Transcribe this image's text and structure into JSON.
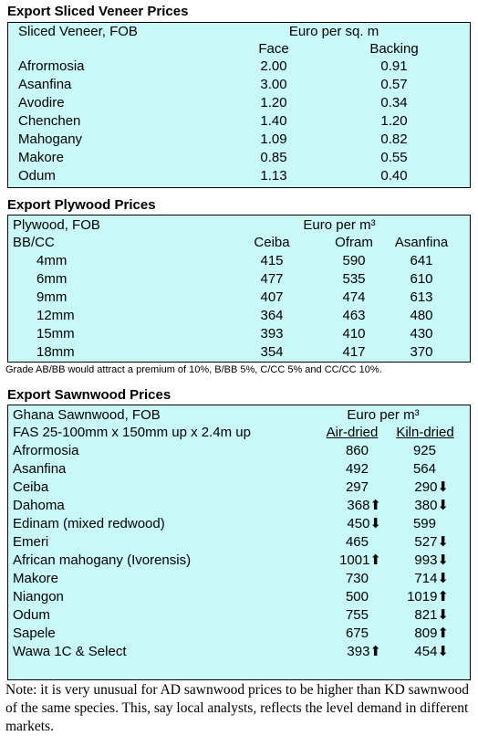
{
  "veneer": {
    "title": "Export Sliced Veneer Prices",
    "header": "Sliced Veneer, FOB",
    "unit": "Euro per sq. m",
    "columns": [
      "Face",
      "Backing"
    ],
    "rows": [
      [
        "Afrormosia",
        "2.00",
        "0.91"
      ],
      [
        "Asanfina",
        "3.00",
        "0.57"
      ],
      [
        "Avodire",
        "1.20",
        "0.34"
      ],
      [
        "Chenchen",
        "1.40",
        "1.20"
      ],
      [
        "Mahogany",
        "1.09",
        "0.82"
      ],
      [
        "Makore",
        "0.85",
        "0.55"
      ],
      [
        "Odum",
        "1.13",
        "0.40"
      ]
    ]
  },
  "plywood": {
    "title": "Export Plywood Prices",
    "header": "Plywood, FOB",
    "unit": "Euro per m³",
    "grade": "BB/CC",
    "columns": [
      "Ceiba",
      "Ofram",
      "Asanfina"
    ],
    "rows": [
      [
        "4mm",
        "415",
        "590",
        "641"
      ],
      [
        "6mm",
        "477",
        "535",
        "610"
      ],
      [
        "9mm",
        "407",
        "474",
        "613"
      ],
      [
        "12mm",
        "364",
        "463",
        "480"
      ],
      [
        "15mm",
        "393",
        "410",
        "430"
      ],
      [
        "18mm",
        "354",
        "417",
        "370"
      ]
    ],
    "note": "Grade AB/BB would attract a premium of 10%, B/BB 5%, C/CC 5% and CC/CC 10%."
  },
  "sawnwood": {
    "title": "Export Sawnwood Prices",
    "header": "Ghana Sawnwood, FOB",
    "unit": "Euro per m³",
    "spec": "FAS 25-100mm x 150mm up x 2.4m up",
    "columns": [
      "Air-dried",
      "Kiln-dried"
    ],
    "rows": [
      [
        "Afrormosia",
        "860",
        "925"
      ],
      [
        "Asanfina",
        "492",
        "564"
      ],
      [
        "Ceiba",
        "297",
        "290⬇"
      ],
      [
        "Dahoma",
        "368⬆",
        "380⬇"
      ],
      [
        "Edinam (mixed redwood)",
        "450⬇",
        "599"
      ],
      [
        "Emeri",
        "465",
        "527⬇"
      ],
      [
        "African mahogany (Ivorensis)",
        "1001⬆",
        "993⬇"
      ],
      [
        "Makore",
        "730",
        "714⬇"
      ],
      [
        "Niangon",
        "500",
        "1019⬆"
      ],
      [
        "Odum",
        "755",
        "821⬇"
      ],
      [
        "Sapele",
        "675",
        "809⬆"
      ],
      [
        "Wawa 1C & Select",
        "393⬆",
        "454⬇"
      ]
    ],
    "note": "Note: it is very unusual for AD sawnwood prices to be higher than KD sawnwood of the same species. This, say local analysts, reflects the level demand in different markets."
  }
}
